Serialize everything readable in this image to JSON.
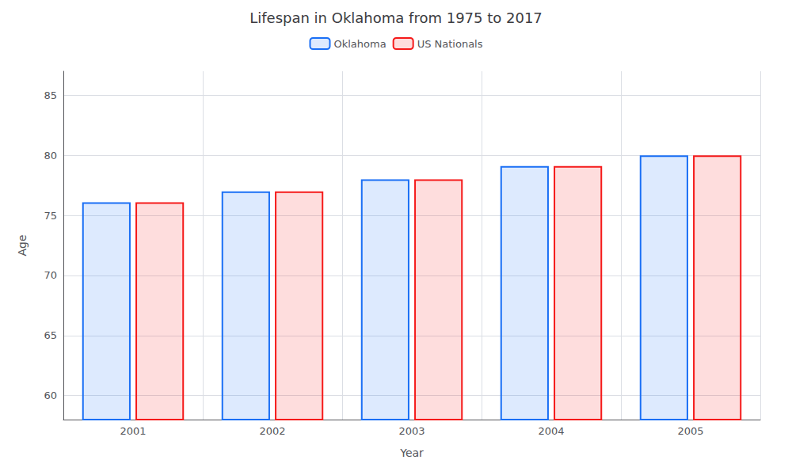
{
  "chart_data": {
    "type": "bar",
    "title": "Lifespan in Oklahoma from 1975 to 2017",
    "x_label": "Year",
    "y_label": "Age",
    "categories": [
      "2001",
      "2002",
      "2003",
      "2004",
      "2005"
    ],
    "series": [
      {
        "name": "Oklahoma",
        "color": "#1a6ff5",
        "values": [
          76.1,
          77.0,
          78.0,
          79.1,
          80.0
        ]
      },
      {
        "name": "US Nationals",
        "color": "#f51a1a",
        "values": [
          76.1,
          77.0,
          78.0,
          79.1,
          80.0
        ]
      }
    ],
    "ylim": [
      58,
      87
    ],
    "yticks": [
      60,
      65,
      70,
      75,
      80,
      85
    ],
    "grid": true,
    "legend": "top"
  }
}
